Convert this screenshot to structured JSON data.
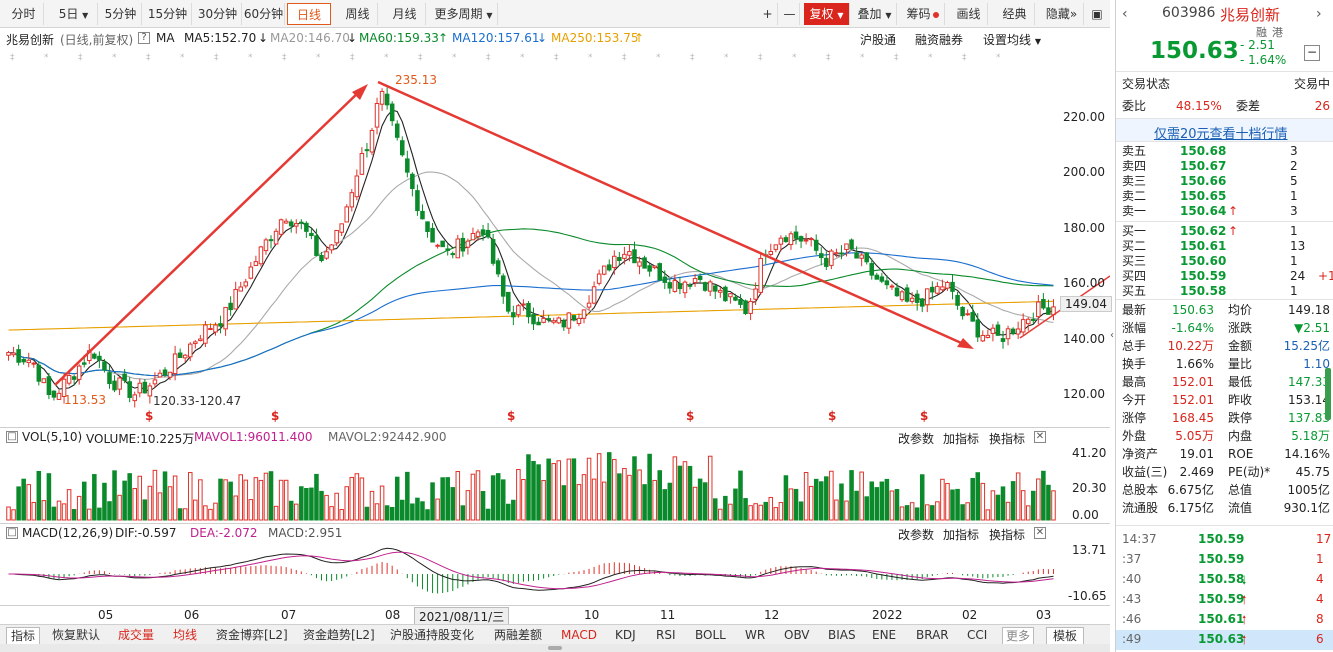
{
  "toolbar": {
    "periods": [
      "分时",
      "5日",
      "5分钟",
      "15分钟",
      "30分钟",
      "60分钟",
      "日线",
      "周线",
      "月线",
      "更多周期"
    ],
    "plus": "+",
    "minus": "—",
    "fuquan": "复权",
    "diejia": "叠加",
    "chouma": "筹码",
    "huaxian": "画线",
    "jingdian": "经典",
    "yincang": "隐藏"
  },
  "ma_line": {
    "name": "兆易创新",
    "desc": "(日线,前复权)",
    "help": "?",
    "ma": "MA",
    "ma5": "MA5:152.70",
    "ma20": "MA20:146.70",
    "ma60": "MA60:159.33",
    "ma120": "MA120:157.61",
    "ma250": "MA250:153.75",
    "hgt": "沪股通",
    "rzrq": "融资融券",
    "setma": "设置均线"
  },
  "chart_data": {
    "type": "candlestick",
    "y_ticks": [
      "220.00",
      "200.00",
      "180.00",
      "160.00",
      "140.00",
      "120.00"
    ],
    "current_price_label": "149.04",
    "annotations": {
      "high": "235.13",
      "low": "113.53",
      "range": "120.33-120.47"
    },
    "x_ticks": [
      "05",
      "06",
      "07",
      "08",
      "2021/08/11/三",
      "10",
      "11",
      "12",
      "2022",
      "02",
      "03"
    ],
    "dividend_mark": "$"
  },
  "volume_panel": {
    "title": "VOL(5,10)",
    "volume": "VOLUME:10.225万",
    "mavol1": "MAVOL1:96011.400",
    "mavol2": "MAVOL2:92442.900",
    "y_ticks": [
      "41.20",
      "20.30",
      "0.00"
    ],
    "btn_param": "改参数",
    "btn_add": "加指标",
    "btn_switch": "换指标"
  },
  "macd_panel": {
    "title": "MACD(12,26,9)",
    "dif": "DIF:-0.597",
    "dea": "DEA:-2.072",
    "macd": "MACD:2.951",
    "y_ticks": [
      "13.71",
      "-10.65"
    ],
    "btn_param": "改参数",
    "btn_add": "加指标",
    "btn_switch": "换指标"
  },
  "bottom_tabs": [
    "指标",
    "恢复默认",
    "成交量",
    "均线",
    "资金博弈[L2]",
    "资金趋势[L2]",
    "沪股通持股变化",
    "两融差额",
    "MACD",
    "KDJ",
    "RSI",
    "BOLL",
    "WR",
    "OBV",
    "BIAS",
    "ENE",
    "BRAR",
    "CCI",
    "更多",
    "模板"
  ],
  "quote": {
    "code": "603986",
    "name": "兆易创新",
    "tag1": "融",
    "tag2": "港",
    "price": "150.63",
    "change": "- 2.51",
    "pct": "- 1.64%",
    "status_label": "交易状态",
    "status_value": "交易中",
    "weibi_label": "委比",
    "weibi_value": "48.15%",
    "weicha_label": "委差",
    "weicha_value": "26",
    "promo": "仅需20元查看十档行情",
    "asks": [
      {
        "label": "卖五",
        "price": "150.68",
        "vol": "3"
      },
      {
        "label": "卖四",
        "price": "150.67",
        "vol": "2"
      },
      {
        "label": "卖三",
        "price": "150.66",
        "vol": "5"
      },
      {
        "label": "卖二",
        "price": "150.65",
        "vol": "1"
      },
      {
        "label": "卖一",
        "price": "150.64",
        "vol": "3"
      }
    ],
    "bids": [
      {
        "label": "买一",
        "price": "150.62",
        "vol": "1",
        "extra": ""
      },
      {
        "label": "买二",
        "price": "150.61",
        "vol": "13",
        "extra": ""
      },
      {
        "label": "买三",
        "price": "150.60",
        "vol": "1",
        "extra": ""
      },
      {
        "label": "买四",
        "price": "150.59",
        "vol": "24",
        "extra": "+1"
      },
      {
        "label": "买五",
        "price": "150.58",
        "vol": "1",
        "extra": ""
      }
    ],
    "stats": [
      [
        "最新",
        "150.63",
        "均价",
        "149.18"
      ],
      [
        "涨幅",
        "-1.64%",
        "涨跌",
        "▼2.51"
      ],
      [
        "总手",
        "10.22万",
        "金额",
        "15.25亿"
      ],
      [
        "换手",
        "1.66%",
        "量比",
        "1.10"
      ],
      [
        "最高",
        "152.01",
        "最低",
        "147.33"
      ],
      [
        "今开",
        "152.01",
        "昨收",
        "153.14"
      ],
      [
        "涨停",
        "168.45",
        "跌停",
        "137.83"
      ],
      [
        "外盘",
        "5.05万",
        "内盘",
        "5.18万"
      ],
      [
        "净资产",
        "19.01",
        "ROE",
        "14.16%"
      ],
      [
        "收益(三)",
        "2.469",
        "PE(动)*",
        "45.75"
      ],
      [
        "总股本",
        "6.675亿",
        "总值",
        "1005亿"
      ],
      [
        "流通股",
        "6.175亿",
        "流值",
        "930.1亿"
      ]
    ],
    "ticks": [
      {
        "time": "14:37",
        "price": "150.59",
        "vol": "17",
        "dir": ""
      },
      {
        "time": ":37",
        "price": "150.59",
        "vol": "1",
        "dir": ""
      },
      {
        "time": ":40",
        "price": "150.58",
        "vol": "4",
        "dir": "down"
      },
      {
        "time": ":43",
        "price": "150.59",
        "vol": "4",
        "dir": "up"
      },
      {
        "time": ":46",
        "price": "150.61",
        "vol": "8",
        "dir": "up"
      },
      {
        "time": ":49",
        "price": "150.63",
        "vol": "6",
        "dir": "up"
      }
    ]
  }
}
